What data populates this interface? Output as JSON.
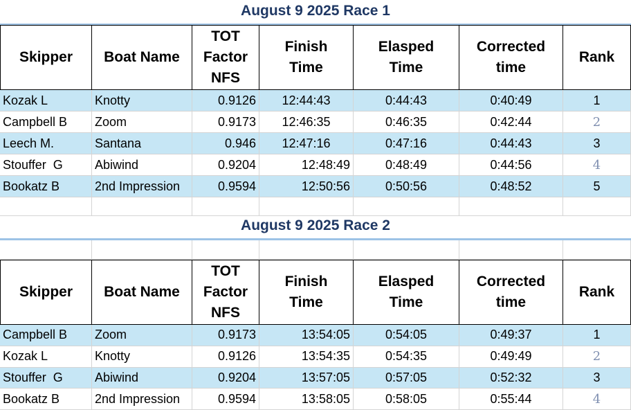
{
  "races": [
    {
      "title": "August 9 2025 Race 1",
      "headers": [
        [
          "Skipper"
        ],
        [
          "Boat Name"
        ],
        [
          "TOT",
          "Factor",
          "NFS"
        ],
        [
          "Finish",
          "Time"
        ],
        [
          "Elasped",
          "Time"
        ],
        [
          "Corrected",
          "time"
        ],
        [
          "Rank"
        ]
      ],
      "rows": [
        [
          "Kozak L",
          "Knotty",
          "0.9126",
          "12:44:43",
          "0:44:43",
          "0:40:49",
          "1"
        ],
        [
          "Campbell B",
          "Zoom",
          "0.9173",
          "12:46:35",
          "0:46:35",
          "0:42:44",
          "2"
        ],
        [
          "Leech M.",
          "Santana",
          "0.946",
          "12:47:16",
          "0:47:16",
          "0:44:43",
          "3"
        ],
        [
          "Stouffer  G",
          "Abiwind",
          "0.9204",
          "12:48:49",
          "0:48:49",
          "0:44:56",
          "4"
        ],
        [
          "Bookatz B",
          "2nd Impression",
          "0.9594",
          "12:50:56",
          "0:50:56",
          "0:48:52",
          "5"
        ]
      ]
    },
    {
      "title": "August 9 2025 Race 2",
      "headers": [
        [
          "Skipper"
        ],
        [
          "Boat Name"
        ],
        [
          "TOT",
          "Factor",
          "NFS"
        ],
        [
          "Finish",
          "Time"
        ],
        [
          "Elasped",
          "Time"
        ],
        [
          "Corrected",
          "time"
        ],
        [
          "Rank"
        ]
      ],
      "rows": [
        [
          "Campbell B",
          "Zoom",
          "0.9173",
          "13:54:05",
          "0:54:05",
          "0:49:37",
          "1"
        ],
        [
          "Kozak L",
          "Knotty",
          "0.9126",
          "13:54:35",
          "0:54:35",
          "0:49:49",
          "2"
        ],
        [
          "Stouffer  G",
          "Abiwind",
          "0.9204",
          "13:57:05",
          "0:57:05",
          "0:52:32",
          "3"
        ],
        [
          "Bookatz B",
          "2nd Impression",
          "0.9594",
          "13:58:05",
          "0:58:05",
          "0:55:44",
          "4"
        ]
      ]
    }
  ]
}
